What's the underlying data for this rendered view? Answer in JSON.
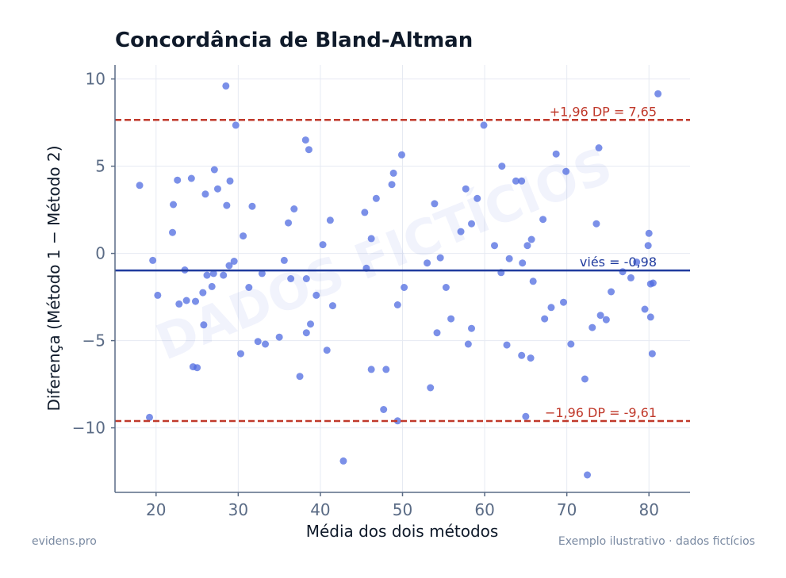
{
  "chart_data": {
    "type": "scatter",
    "title": "Concordância de Bland-Altman",
    "xlabel": "Média dos dois métodos",
    "ylabel": "Diferença (Método 1 − Método 2)",
    "xlim": [
      15,
      85
    ],
    "ylim": [
      -13.7,
      10.8
    ],
    "xticks": [
      20,
      30,
      40,
      50,
      60,
      70,
      80
    ],
    "yticks": [
      10,
      5,
      0,
      -5,
      -10
    ],
    "xtick_labels": [
      "20",
      "30",
      "40",
      "50",
      "60",
      "70",
      "80"
    ],
    "ytick_labels": [
      "10",
      "5",
      "0",
      "−5",
      "−10"
    ],
    "grid": true,
    "bias": -0.98,
    "upper_loa": 7.65,
    "lower_loa": -9.61,
    "bias_label": "viés = -0,98",
    "upper_label": "+1,96 DP = 7,65",
    "lower_label": "−1,96 DP = -9,61",
    "watermark": "DADOS FICTÍCIOS",
    "colors": {
      "points": "#4f6be0",
      "bias": "#1f3a9e",
      "loa": "#c0392b",
      "axis": "#5a6b85",
      "grid": "#e6eaf2"
    },
    "points": [
      [
        18.0,
        3.9
      ],
      [
        19.2,
        -9.4
      ],
      [
        19.6,
        -0.4
      ],
      [
        20.2,
        -2.4
      ],
      [
        22.0,
        1.2
      ],
      [
        22.1,
        2.8
      ],
      [
        22.6,
        4.2
      ],
      [
        22.8,
        -2.9
      ],
      [
        23.5,
        -0.95
      ],
      [
        23.7,
        -2.7
      ],
      [
        24.3,
        4.3
      ],
      [
        24.5,
        -6.5
      ],
      [
        24.8,
        -2.75
      ],
      [
        25.0,
        -6.55
      ],
      [
        25.7,
        -2.25
      ],
      [
        25.8,
        -4.1
      ],
      [
        26.0,
        3.4
      ],
      [
        26.2,
        -1.25
      ],
      [
        26.8,
        -1.9
      ],
      [
        27.0,
        -1.15
      ],
      [
        27.1,
        4.8
      ],
      [
        27.5,
        3.7
      ],
      [
        28.2,
        -1.25
      ],
      [
        28.5,
        9.6
      ],
      [
        28.6,
        2.75
      ],
      [
        28.9,
        -0.7
      ],
      [
        29.0,
        4.15
      ],
      [
        29.5,
        -0.45
      ],
      [
        29.7,
        7.35
      ],
      [
        30.3,
        -5.75
      ],
      [
        30.6,
        1.0
      ],
      [
        31.3,
        -1.95
      ],
      [
        31.7,
        2.7
      ],
      [
        32.4,
        -5.05
      ],
      [
        32.9,
        -1.15
      ],
      [
        33.3,
        -5.2
      ],
      [
        35.0,
        -4.8
      ],
      [
        35.6,
        -0.4
      ],
      [
        36.1,
        1.75
      ],
      [
        36.4,
        -1.45
      ],
      [
        36.8,
        2.55
      ],
      [
        37.5,
        -7.05
      ],
      [
        38.2,
        6.5
      ],
      [
        38.3,
        -1.45
      ],
      [
        38.3,
        -4.55
      ],
      [
        38.6,
        5.95
      ],
      [
        38.8,
        -4.05
      ],
      [
        39.5,
        -2.4
      ],
      [
        40.3,
        0.5
      ],
      [
        40.8,
        -5.55
      ],
      [
        41.2,
        1.9
      ],
      [
        41.5,
        -3.0
      ],
      [
        42.8,
        -11.9
      ],
      [
        45.4,
        2.35
      ],
      [
        45.6,
        -0.85
      ],
      [
        46.2,
        0.85
      ],
      [
        46.2,
        -6.65
      ],
      [
        46.8,
        3.15
      ],
      [
        47.7,
        -8.95
      ],
      [
        48.0,
        -6.65
      ],
      [
        48.7,
        3.95
      ],
      [
        48.9,
        4.6
      ],
      [
        49.4,
        -2.95
      ],
      [
        49.4,
        -9.6
      ],
      [
        49.9,
        5.65
      ],
      [
        50.2,
        -1.95
      ],
      [
        53.0,
        -0.55
      ],
      [
        53.4,
        -7.7
      ],
      [
        53.9,
        2.85
      ],
      [
        54.2,
        -4.55
      ],
      [
        54.6,
        -0.25
      ],
      [
        55.3,
        -1.95
      ],
      [
        55.9,
        -3.75
      ],
      [
        57.1,
        1.25
      ],
      [
        57.7,
        3.7
      ],
      [
        58.0,
        -5.2
      ],
      [
        58.4,
        1.7
      ],
      [
        58.4,
        -4.3
      ],
      [
        59.1,
        3.15
      ],
      [
        59.9,
        7.35
      ],
      [
        61.2,
        0.45
      ],
      [
        62.0,
        -1.1
      ],
      [
        62.1,
        5.0
      ],
      [
        62.7,
        -5.25
      ],
      [
        63.0,
        -0.3
      ],
      [
        63.8,
        4.15
      ],
      [
        64.5,
        4.15
      ],
      [
        64.5,
        -5.85
      ],
      [
        64.6,
        -0.55
      ],
      [
        65.0,
        -9.35
      ],
      [
        65.2,
        0.45
      ],
      [
        65.7,
        0.8
      ],
      [
        65.6,
        -6.0
      ],
      [
        65.9,
        -1.6
      ],
      [
        67.1,
        1.95
      ],
      [
        67.3,
        -3.75
      ],
      [
        68.1,
        -3.1
      ],
      [
        68.7,
        5.7
      ],
      [
        69.6,
        -2.8
      ],
      [
        69.9,
        4.7
      ],
      [
        70.5,
        -5.2
      ],
      [
        72.2,
        -7.2
      ],
      [
        72.5,
        -12.7
      ],
      [
        73.1,
        -4.25
      ],
      [
        73.6,
        1.7
      ],
      [
        73.9,
        6.05
      ],
      [
        74.1,
        -3.55
      ],
      [
        74.8,
        -3.8
      ],
      [
        75.4,
        -2.2
      ],
      [
        76.8,
        -1.05
      ],
      [
        77.8,
        -1.4
      ],
      [
        78.5,
        -0.5
      ],
      [
        79.5,
        -3.2
      ],
      [
        79.9,
        0.45
      ],
      [
        80.0,
        1.15
      ],
      [
        80.2,
        -3.65
      ],
      [
        80.2,
        -1.75
      ],
      [
        80.4,
        -5.75
      ],
      [
        80.5,
        -1.7
      ],
      [
        81.1,
        9.15
      ]
    ]
  },
  "footer": {
    "left": "evidens.pro",
    "right": "Exemplo ilustrativo · dados fictícios"
  }
}
